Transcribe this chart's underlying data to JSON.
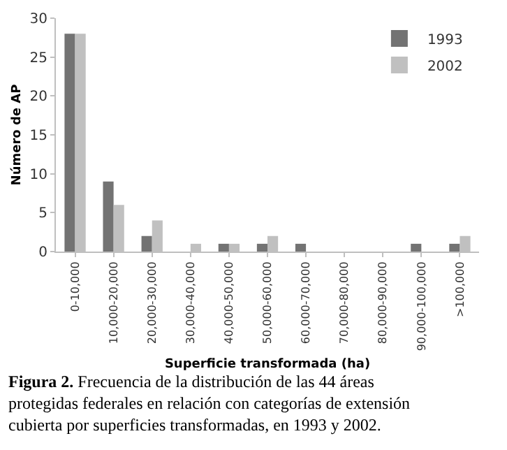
{
  "chart_data": {
    "type": "bar",
    "xlabel": "Superficie transformada (ha)",
    "ylabel": "Número de AP",
    "categories": [
      "0-10,000",
      "10,000-20,000",
      "20,000-30,000",
      "30,000-40,000",
      "40,000-50,000",
      "50,000-60,000",
      "60,000-70,000",
      "70,000-80,000",
      "80,000-90,000",
      "90,000-100,000",
      ">100,000"
    ],
    "series": [
      {
        "name": "1993",
        "color": "#737373",
        "values": [
          28,
          9,
          2,
          0,
          1,
          1,
          1,
          0,
          0,
          1,
          1
        ]
      },
      {
        "name": "2002",
        "color": "#c0c0c0",
        "values": [
          28,
          6,
          4,
          1,
          1,
          2,
          0,
          0,
          0,
          0,
          2
        ]
      }
    ],
    "ylim": [
      0,
      30
    ],
    "yticks": [
      0,
      5,
      10,
      15,
      20,
      25,
      30
    ],
    "legend": "top right",
    "annotations": [
      "Figura 2.",
      "Frecuencia de la distribución de las 44 áreas protegidas federales en relación con categorías de extensión cubierta por superficies transformadas, en 1993 y 2002."
    ]
  }
}
